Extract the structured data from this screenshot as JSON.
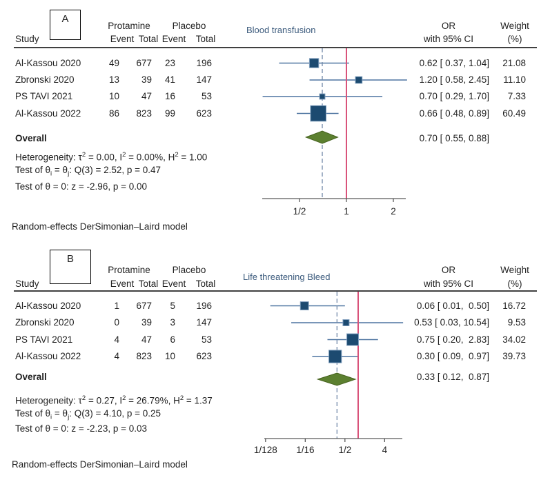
{
  "colors": {
    "marker_box": "#1c4a70",
    "marker_box_border": "#7d9cbc",
    "ci_line": "#4d74a0",
    "overall_dashed_line": "#7289a9",
    "null_line": "#d9537a",
    "diamond": "#5c8030",
    "diamond_border": "#46621f",
    "axis": "#595959",
    "plot_title_text": "#3b5a7c",
    "text": "#1f1f1f"
  },
  "chart_data": [
    {
      "type": "forest",
      "panel_label": "A",
      "title": "Blood transfusion",
      "model_note": "Random-effects DerSimonian–Laird model",
      "columns": {
        "study": "Study",
        "group1": "Protamine",
        "group2": "Placebo",
        "event1": "Event",
        "total1": "Total",
        "event2": "Event",
        "total2": "Total",
        "or_line1": "OR",
        "or_line2": "with 95% CI",
        "weight_line1": "Weight",
        "weight_line2": "(%)"
      },
      "studies": [
        {
          "name": "Al-Kassou 2020",
          "protamine_event": "49",
          "protamine_total": "677",
          "placebo_event": "23",
          "placebo_total": "196",
          "or": 0.62,
          "ci_low": 0.37,
          "ci_high": 1.04,
          "or_label": "0.62 [ 0.37, 1.04]",
          "weight": 21.08,
          "weight_label": "21.08"
        },
        {
          "name": "Zbronski 2020",
          "protamine_event": "13",
          "protamine_total": "39",
          "placebo_event": "41",
          "placebo_total": "147",
          "or": 1.2,
          "ci_low": 0.58,
          "ci_high": 2.45,
          "or_label": "1.20 [ 0.58, 2.45]",
          "weight": 11.1,
          "weight_label": "11.10"
        },
        {
          "name": "PS TAVI 2021",
          "protamine_event": "10",
          "protamine_total": "47",
          "placebo_event": "16",
          "placebo_total": "53",
          "or": 0.7,
          "ci_low": 0.29,
          "ci_high": 1.7,
          "or_label": "0.70 [ 0.29, 1.70]",
          "weight": 7.33,
          "weight_label": "7.33"
        },
        {
          "name": "Al-Kassou 2022",
          "protamine_event": "86",
          "protamine_total": "823",
          "placebo_event": "99",
          "placebo_total": "623",
          "or": 0.66,
          "ci_low": 0.48,
          "ci_high": 0.89,
          "or_label": "0.66 [ 0.48, 0.89]",
          "weight": 60.49,
          "weight_label": "60.49"
        }
      ],
      "overall": {
        "label": "Overall",
        "or": 0.7,
        "ci_low": 0.55,
        "ci_high": 0.88,
        "or_label": "0.70 [ 0.55, 0.88]"
      },
      "heterogeneity": {
        "seg1": "Heterogeneity: τ",
        "sup1": "2",
        "seg2": " = 0.00, I",
        "sup2": "2",
        "seg3": " = 0.00%, H",
        "sup3": "2",
        "seg4": " = 1.00"
      },
      "test_q": {
        "seg1": "Test of θ",
        "sub1": "i",
        "seg2": " = θ",
        "sub2": "j",
        "seg3": ": Q(3) = 2.52, p = 0.47"
      },
      "test_z": "Test of θ = 0: z = -2.96, p = 0.00",
      "axis": {
        "scale": "log2",
        "null_value": 1,
        "ticks": [
          {
            "label": "1/2",
            "value": 0.5
          },
          {
            "label": "1",
            "value": 1
          },
          {
            "label": "2",
            "value": 2
          }
        ]
      }
    },
    {
      "type": "forest",
      "panel_label": "B",
      "title": "Life threatening Bleed",
      "model_note": "Random-effects DerSimonian–Laird model",
      "columns": {
        "study": "Study",
        "group1": "Protamine",
        "group2": "Placebo",
        "event1": "Event",
        "total1": "Total",
        "event2": "Event",
        "total2": "Total",
        "or_line1": "OR",
        "or_line2": "with 95% CI",
        "weight_line1": "Weight",
        "weight_line2": "(%)"
      },
      "studies": [
        {
          "name": "Al-Kassou 2020",
          "protamine_event": "1",
          "protamine_total": "677",
          "placebo_event": "5",
          "placebo_total": "196",
          "or": 0.06,
          "ci_low": 0.01,
          "ci_high": 0.5,
          "or_label": "0.06 [ 0.01,  0.50]",
          "weight": 16.72,
          "weight_label": "16.72"
        },
        {
          "name": "Zbronski 2020",
          "protamine_event": "0",
          "protamine_total": "39",
          "placebo_event": "3",
          "placebo_total": "147",
          "or": 0.53,
          "ci_low": 0.03,
          "ci_high": 10.54,
          "or_label": "0.53 [ 0.03, 10.54]",
          "weight": 9.53,
          "weight_label": "9.53"
        },
        {
          "name": "PS TAVI 2021",
          "protamine_event": "4",
          "protamine_total": "47",
          "placebo_event": "6",
          "placebo_total": "53",
          "or": 0.75,
          "ci_low": 0.2,
          "ci_high": 2.83,
          "or_label": "0.75 [ 0.20,  2.83]",
          "weight": 34.02,
          "weight_label": "34.02"
        },
        {
          "name": "Al-Kassou 2022",
          "protamine_event": "4",
          "protamine_total": "823",
          "placebo_event": "10",
          "placebo_total": "623",
          "or": 0.3,
          "ci_low": 0.09,
          "ci_high": 0.97,
          "or_label": "0.30 [ 0.09,  0.97]",
          "weight": 39.73,
          "weight_label": "39.73"
        }
      ],
      "overall": {
        "label": "Overall",
        "or": 0.33,
        "ci_low": 0.12,
        "ci_high": 0.87,
        "or_label": "0.33 [ 0.12,  0.87]"
      },
      "heterogeneity": {
        "seg1": "Heterogeneity: τ",
        "sup1": "2",
        "seg2": " = 0.27, I",
        "sup2": "2",
        "seg3": " = 26.79%, H",
        "sup3": "2",
        "seg4": " = 1.37"
      },
      "test_q": {
        "seg1": "Test of θ",
        "sub1": "i",
        "seg2": " = θ",
        "sub2": "j",
        "seg3": ": Q(3) = 4.10, p = 0.25"
      },
      "test_z": "Test of θ = 0: z = -2.23, p = 0.03",
      "axis": {
        "scale": "log2",
        "null_value": 1,
        "ticks": [
          {
            "label": "1/128",
            "value": 0.0078125
          },
          {
            "label": "1/16",
            "value": 0.0625
          },
          {
            "label": "1/2",
            "value": 0.5
          },
          {
            "label": "4",
            "value": 4
          }
        ]
      }
    }
  ]
}
